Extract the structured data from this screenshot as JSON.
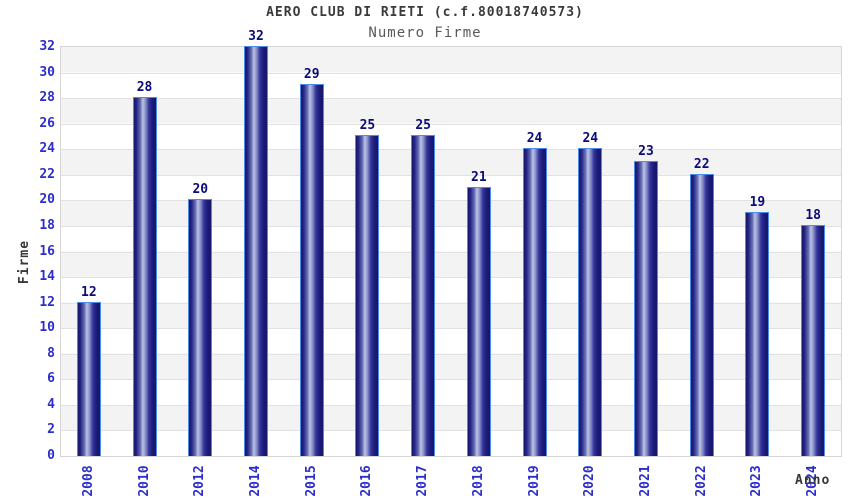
{
  "header": {
    "title": "AERO CLUB DI RIETI (c.f.80018740573)",
    "subtitle": "Numero Firme"
  },
  "chart_data": {
    "type": "bar",
    "title": "AERO CLUB DI RIETI (c.f.80018740573)",
    "subtitle": "Numero Firme",
    "xlabel": "Anno",
    "ylabel": "Firme",
    "categories": [
      "2008",
      "2010",
      "2012",
      "2014",
      "2015",
      "2016",
      "2017",
      "2018",
      "2019",
      "2020",
      "2021",
      "2022",
      "2023",
      "2024"
    ],
    "values": [
      12,
      28,
      20,
      32,
      29,
      25,
      25,
      21,
      24,
      24,
      23,
      22,
      19,
      18
    ],
    "ylim": [
      0,
      32
    ],
    "yticks": [
      0,
      2,
      4,
      6,
      8,
      10,
      12,
      14,
      16,
      18,
      20,
      22,
      24,
      26,
      28,
      30,
      32
    ],
    "grid": "horizontal",
    "legend": "none",
    "band_fill": "alternating horizontal stripes every 2 units",
    "colors": {
      "bar_dark": "#15156b",
      "bar_highlight": "#bcc3e6",
      "bar_border": "#4d8be8",
      "value_label": "#0b0b78",
      "tick_label": "#2d2dcc",
      "axis_label": "#383838",
      "title": "#3a3a3a",
      "subtitle": "#5a5a5a",
      "band_gray": "#f3f3f3",
      "band_white": "#ffffff",
      "gridline": "#e2e2e2"
    }
  }
}
